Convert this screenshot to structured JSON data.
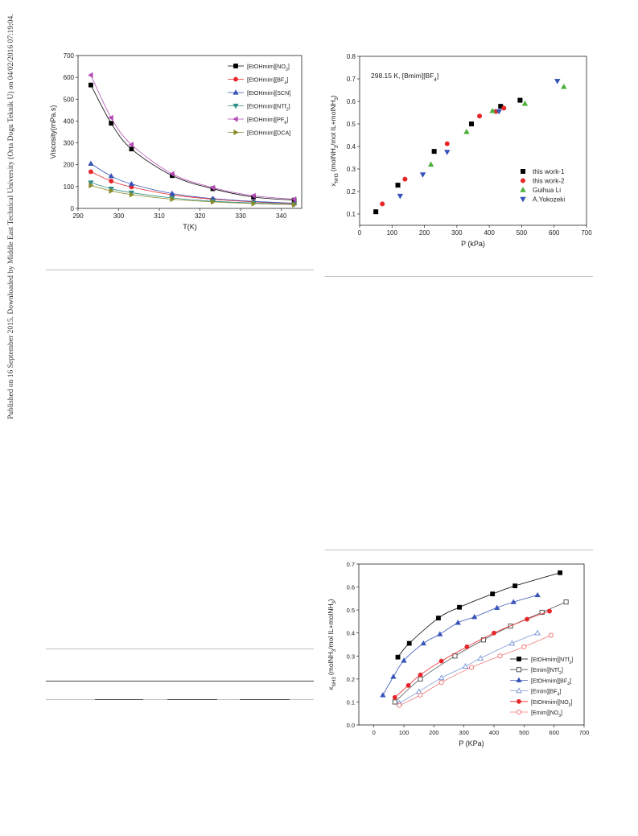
{
  "side_note": "Published on 16 September 2015. Downloaded by Middle East Technical University (Orta Dogu Teknik U) on 04/02/2016 07:19:04.",
  "colors": {
    "black": "#000000",
    "red": "#e8262a",
    "blue": "#3553b8",
    "teal": "#2e8f8a",
    "purple": "#b44bb5",
    "olive": "#8a8a2a",
    "green": "#4caf3a",
    "lightblue": "#7f99d8",
    "pink": "#f07a7a"
  },
  "chart_data": [
    {
      "type": "line",
      "xlabel": "T(K)",
      "ylabel": "Viscosity(mPa.s)",
      "xlim": [
        290,
        345
      ],
      "ylim": [
        0,
        700
      ],
      "xticks": [
        "290",
        "300",
        "310",
        "320",
        "330",
        "340"
      ],
      "yticks": [
        "0",
        "100",
        "200",
        "300",
        "400",
        "500",
        "600",
        "700"
      ],
      "legend": "top-right",
      "x": [
        293.15,
        298.15,
        303.15,
        313.15,
        323.15,
        333.15,
        343.15
      ],
      "series": [
        {
          "name": "[EtOHmim][NO3]",
          "color": "#000000",
          "marker": "square",
          "values": [
            565,
            390,
            272,
            150,
            90,
            52,
            38
          ]
        },
        {
          "name": "[EtOHmim][BF4]",
          "color": "#e8262a",
          "marker": "circle",
          "values": [
            168,
            125,
            98,
            62,
            42,
            30,
            22
          ]
        },
        {
          "name": "[EtOHmim][SCN]",
          "color": "#3553b8",
          "marker": "triangle-up",
          "values": [
            205,
            148,
            112,
            68,
            45,
            32,
            24
          ]
        },
        {
          "name": "[EtOHmim][NTf2]",
          "color": "#2e8f8a",
          "marker": "triangle-down",
          "values": [
            118,
            90,
            72,
            48,
            33,
            25,
            18
          ]
        },
        {
          "name": "[EtOHmim][PF6]",
          "color": "#b44bb5",
          "marker": "triangle-left",
          "values": [
            610,
            415,
            292,
            158,
            95,
            58,
            42
          ]
        },
        {
          "name": "[EtOHmim][DCA]",
          "color": "#8a8a2a",
          "marker": "triangle-right",
          "values": [
            105,
            80,
            63,
            42,
            30,
            22,
            17
          ]
        }
      ]
    },
    {
      "type": "scatter",
      "annotation": "298.15 K, [Bmim][BF4]",
      "xlabel": "P (kPa)",
      "ylabel": "xNH3 (molNH3/mol IL+molNH3)",
      "xlim": [
        0,
        700
      ],
      "ylim": [
        0.05,
        0.8
      ],
      "xticks": [
        "0",
        "100",
        "200",
        "300",
        "400",
        "500",
        "600",
        "700"
      ],
      "yticks": [
        "0.1",
        "0.2",
        "0.3",
        "0.4",
        "0.5",
        "0.6",
        "0.7",
        "0.8"
      ],
      "legend": "bottom-right",
      "series": [
        {
          "name": "this work-1",
          "color": "#000000",
          "marker": "square",
          "points": [
            [
              50,
              0.11
            ],
            [
              118,
              0.228
            ],
            [
              230,
              0.378
            ],
            [
              345,
              0.5
            ],
            [
              435,
              0.578
            ],
            [
              495,
              0.605
            ]
          ]
        },
        {
          "name": "this work-2",
          "color": "#e8262a",
          "marker": "circle",
          "points": [
            [
              70,
              0.145
            ],
            [
              140,
              0.255
            ],
            [
              270,
              0.412
            ],
            [
              370,
              0.535
            ],
            [
              420,
              0.555
            ],
            [
              445,
              0.57
            ]
          ]
        },
        {
          "name": "Guihua Li",
          "color": "#4caf3a",
          "marker": "triangle-up",
          "points": [
            [
              220,
              0.32
            ],
            [
              330,
              0.465
            ],
            [
              410,
              0.558
            ],
            [
              510,
              0.59
            ],
            [
              630,
              0.665
            ]
          ]
        },
        {
          "name": "A.Yokozeki",
          "color": "#3553b8",
          "marker": "triangle-down",
          "points": [
            [
              125,
              0.18
            ],
            [
              195,
              0.275
            ],
            [
              270,
              0.375
            ],
            [
              430,
              0.555
            ],
            [
              610,
              0.69
            ]
          ]
        }
      ]
    },
    {
      "type": "line",
      "xlabel": "P (KPa)",
      "ylabel": "xNH3 (molNH3/mol IL+molNH3)",
      "xlim": [
        -50,
        700
      ],
      "ylim": [
        0.0,
        0.7
      ],
      "xticks": [
        "0",
        "100",
        "200",
        "300",
        "400",
        "500",
        "600",
        "700"
      ],
      "yticks": [
        "0.0",
        "0.1",
        "0.2",
        "0.3",
        "0.4",
        "0.5",
        "0.6",
        "0.7"
      ],
      "legend": "bottom-right",
      "series": [
        {
          "name": "[EtOHmim][NTf2]",
          "color": "#000000",
          "marker": "square",
          "fill": true,
          "points": [
            [
              80,
              0.295
            ],
            [
              118,
              0.355
            ],
            [
              215,
              0.465
            ],
            [
              285,
              0.512
            ],
            [
              395,
              0.57
            ],
            [
              470,
              0.605
            ],
            [
              620,
              0.662
            ]
          ]
        },
        {
          "name": "[Emim][NTf2]",
          "color": "#555555",
          "marker": "square",
          "fill": false,
          "points": [
            [
              70,
              0.1
            ],
            [
              155,
              0.2
            ],
            [
              270,
              0.3
            ],
            [
              365,
              0.37
            ],
            [
              455,
              0.43
            ],
            [
              560,
              0.49
            ],
            [
              640,
              0.535
            ]
          ]
        },
        {
          "name": "[EtOHmim][BF4]",
          "color": "#3553b8",
          "marker": "triangle-up",
          "fill": true,
          "points": [
            [
              30,
              0.13
            ],
            [
              65,
              0.21
            ],
            [
              100,
              0.28
            ],
            [
              165,
              0.355
            ],
            [
              220,
              0.395
            ],
            [
              280,
              0.445
            ],
            [
              335,
              0.47
            ],
            [
              410,
              0.51
            ],
            [
              465,
              0.535
            ],
            [
              545,
              0.565
            ]
          ]
        },
        {
          "name": "[Emim][BF4]",
          "color": "#7f99d8",
          "marker": "triangle-up",
          "fill": false,
          "points": [
            [
              85,
              0.095
            ],
            [
              150,
              0.145
            ],
            [
              225,
              0.205
            ],
            [
              305,
              0.255
            ],
            [
              355,
              0.29
            ],
            [
              460,
              0.355
            ],
            [
              545,
              0.4
            ]
          ]
        },
        {
          "name": "[EtOHmim][NO3]",
          "color": "#e8262a",
          "marker": "circle",
          "fill": true,
          "points": [
            [
              70,
              0.12
            ],
            [
              115,
              0.172
            ],
            [
              155,
              0.218
            ],
            [
              225,
              0.278
            ],
            [
              310,
              0.34
            ],
            [
              400,
              0.4
            ],
            [
              510,
              0.46
            ],
            [
              585,
              0.495
            ]
          ]
        },
        {
          "name": "[Emim][NO3]",
          "color": "#f07a7a",
          "marker": "circle",
          "fill": false,
          "points": [
            [
              85,
              0.085
            ],
            [
              155,
              0.13
            ],
            [
              225,
              0.185
            ],
            [
              325,
              0.25
            ],
            [
              420,
              0.3
            ],
            [
              500,
              0.34
            ],
            [
              590,
              0.39
            ]
          ]
        }
      ]
    }
  ]
}
